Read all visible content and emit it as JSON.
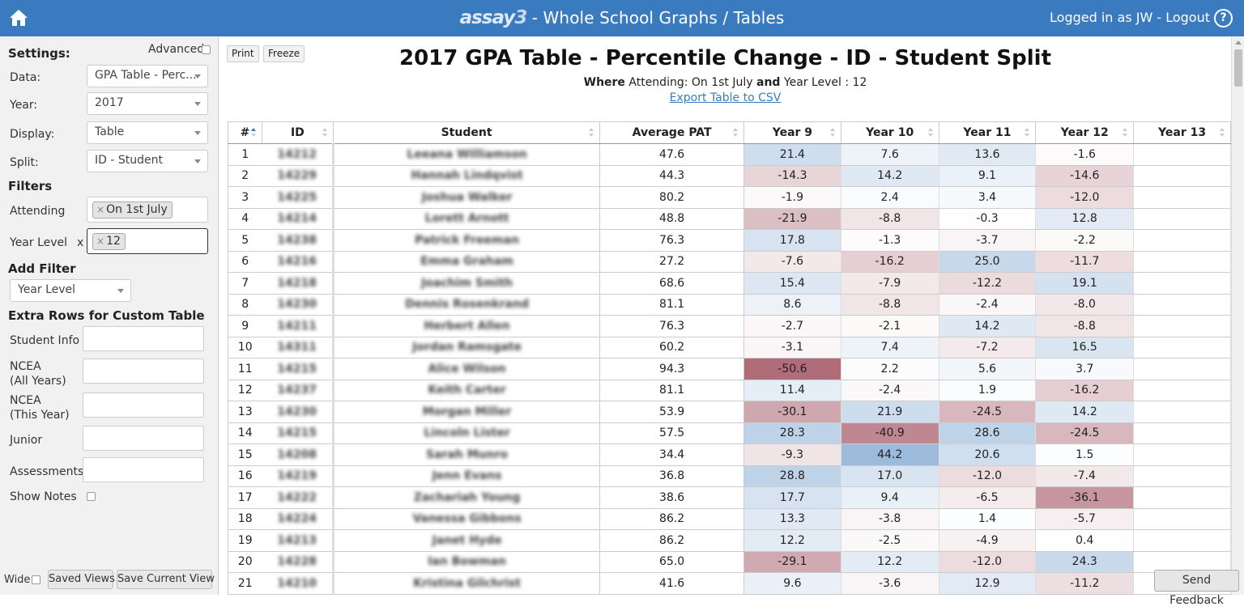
{
  "header": {
    "logo_a": "assay",
    "logo_b": "3",
    "title_suffix": " - Whole School Graphs / Tables",
    "login_text": "Logged in as JW - Logout",
    "help_label": "?"
  },
  "sidebar": {
    "settings_heading": "Settings:",
    "advanced_label": "Advanced",
    "data_label": "Data:",
    "data_value": "GPA Table - Perc...",
    "year_label": "Year:",
    "year_value": "2017",
    "display_label": "Display:",
    "display_value": "Table",
    "split_label": "Split:",
    "split_value": "ID - Student",
    "filters_heading": "Filters",
    "attending_label": "Attending",
    "attending_tag": "On 1st July",
    "year_level_label": "Year Level",
    "year_level_x": "x",
    "year_level_tag": "12",
    "tag_remove": "×",
    "add_filter_heading": "Add Filter",
    "add_filter_value": "Year Level",
    "extra_rows_heading": "Extra Rows for Custom Table",
    "extra_rows": [
      "Student Info",
      "NCEA\n(All Years)",
      "NCEA\n(This Year)",
      "Junior",
      "Assessments"
    ],
    "show_notes_label": "Show Notes",
    "wide_label": "Wide",
    "saved_views_label": "Saved Views",
    "save_current_view_label": "Save Current View"
  },
  "main": {
    "print_label": "Print",
    "freeze_label": "Freeze",
    "title": "2017 GPA Table - Percentile Change - ID - Student Split",
    "subtitle_where": "Where",
    "subtitle_mid": " Attending: On 1st July ",
    "subtitle_and": "and",
    "subtitle_end": " Year Level : 12",
    "export_label": "Export Table to CSV",
    "feedback_label": "Send Feedback"
  },
  "table": {
    "columns": [
      "#",
      "ID",
      "Student",
      "Average PAT",
      "Year 9",
      "Year 10",
      "Year 11",
      "Year 12",
      "Year 13"
    ],
    "rows": [
      {
        "n": "1",
        "id": "14212",
        "name": "Leeana Williamson",
        "pat": "47.6",
        "y": [
          "21.4",
          "7.6",
          "13.6",
          "-1.6",
          ""
        ]
      },
      {
        "n": "2",
        "id": "14229",
        "name": "Hannah Lindqvist",
        "pat": "44.3",
        "y": [
          "-14.3",
          "14.2",
          "9.1",
          "-14.6",
          ""
        ]
      },
      {
        "n": "3",
        "id": "14225",
        "name": "Joshua Walker",
        "pat": "80.2",
        "y": [
          "-1.9",
          "2.4",
          "3.4",
          "-12.0",
          ""
        ]
      },
      {
        "n": "4",
        "id": "14214",
        "name": "Lorett Arnott",
        "pat": "48.8",
        "y": [
          "-21.9",
          "-8.8",
          "-0.3",
          "12.8",
          ""
        ]
      },
      {
        "n": "5",
        "id": "14238",
        "name": "Patrick Freeman",
        "pat": "76.3",
        "y": [
          "17.8",
          "-1.3",
          "-3.7",
          "-2.2",
          ""
        ]
      },
      {
        "n": "6",
        "id": "14216",
        "name": "Emma Graham",
        "pat": "27.2",
        "y": [
          "-7.6",
          "-16.2",
          "25.0",
          "-11.7",
          ""
        ]
      },
      {
        "n": "7",
        "id": "14218",
        "name": "Joachim Smith",
        "pat": "68.6",
        "y": [
          "15.4",
          "-7.9",
          "-12.2",
          "19.1",
          ""
        ]
      },
      {
        "n": "8",
        "id": "14230",
        "name": "Dennis Rosenkrand",
        "pat": "81.1",
        "y": [
          "8.6",
          "-8.8",
          "-2.4",
          "-8.0",
          ""
        ]
      },
      {
        "n": "9",
        "id": "14211",
        "name": "Herbert Allen",
        "pat": "76.3",
        "y": [
          "-2.7",
          "-2.1",
          "14.2",
          "-8.8",
          ""
        ]
      },
      {
        "n": "10",
        "id": "14311",
        "name": "Jordan Ramsgate",
        "pat": "60.2",
        "y": [
          "-3.1",
          "7.4",
          "-7.2",
          "16.5",
          ""
        ]
      },
      {
        "n": "11",
        "id": "14215",
        "name": "Alice Wilson",
        "pat": "94.3",
        "y": [
          "-50.6",
          "2.2",
          "5.6",
          "3.7",
          ""
        ]
      },
      {
        "n": "12",
        "id": "14237",
        "name": "Keith Carter",
        "pat": "81.1",
        "y": [
          "11.4",
          "-2.4",
          "1.9",
          "-16.2",
          ""
        ]
      },
      {
        "n": "13",
        "id": "14230",
        "name": "Morgan Miller",
        "pat": "53.9",
        "y": [
          "-30.1",
          "21.9",
          "-24.5",
          "14.2",
          ""
        ]
      },
      {
        "n": "14",
        "id": "14215",
        "name": "Lincoln Lister",
        "pat": "57.5",
        "y": [
          "28.3",
          "-40.9",
          "28.6",
          "-24.5",
          ""
        ]
      },
      {
        "n": "15",
        "id": "14208",
        "name": "Sarah Munro",
        "pat": "34.4",
        "y": [
          "-9.3",
          "44.2",
          "20.6",
          "1.5",
          ""
        ]
      },
      {
        "n": "16",
        "id": "14219",
        "name": "Jenn Evans",
        "pat": "36.8",
        "y": [
          "28.8",
          "17.0",
          "-12.0",
          "-7.4",
          ""
        ]
      },
      {
        "n": "17",
        "id": "14222",
        "name": "Zachariah Young",
        "pat": "38.6",
        "y": [
          "17.7",
          "9.4",
          "-6.5",
          "-36.1",
          ""
        ]
      },
      {
        "n": "18",
        "id": "14224",
        "name": "Vanessa Gibbons",
        "pat": "86.2",
        "y": [
          "13.3",
          "-3.8",
          "1.4",
          "-5.7",
          ""
        ]
      },
      {
        "n": "19",
        "id": "14213",
        "name": "Janet Hyde",
        "pat": "86.2",
        "y": [
          "12.2",
          "-2.5",
          "-4.9",
          "0.4",
          ""
        ]
      },
      {
        "n": "20",
        "id": "14228",
        "name": "Ian Bowman",
        "pat": "65.0",
        "y": [
          "-29.1",
          "12.2",
          "-12.0",
          "24.3",
          ""
        ]
      },
      {
        "n": "21",
        "id": "14210",
        "name": "Kristina Gilchrist",
        "pat": "41.6",
        "y": [
          "9.6",
          "-3.6",
          "12.9",
          "-11.2",
          ""
        ]
      }
    ]
  },
  "colors": {
    "header_blue": "#3a7bc0",
    "positive": "#4a86c8",
    "negative": "#a03a4a"
  }
}
